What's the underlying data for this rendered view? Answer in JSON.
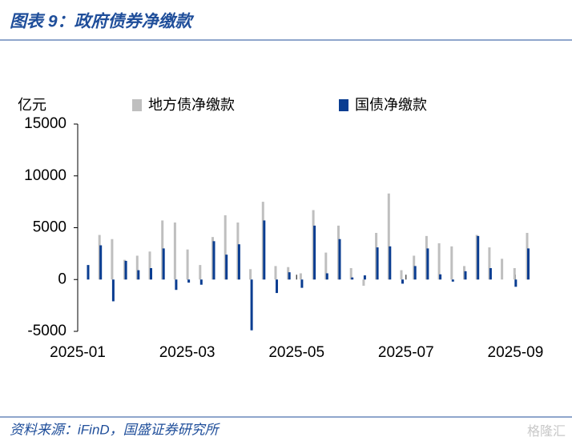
{
  "chart_data": {
    "type": "bar",
    "title": "图表 9：政府债券净缴款",
    "y_unit": "亿元",
    "source": "资料来源：iFinD，国盛证券研究所",
    "watermark": "格隆汇",
    "categories": [
      null,
      null,
      null,
      null,
      null,
      null,
      null,
      null,
      null,
      null,
      null,
      null,
      null,
      null,
      null,
      null,
      null,
      null,
      null,
      null,
      null,
      null,
      null,
      null,
      null,
      null,
      null,
      null,
      null,
      null,
      null,
      null,
      null,
      null,
      null,
      null
    ],
    "xticks": [
      "2025-01",
      "2025-03",
      "2025-05",
      "2025-07",
      "2025-09"
    ],
    "series": [
      {
        "name": "地方债净缴款",
        "color": "#bfbfbf",
        "values": [
          0,
          4300,
          3900,
          1900,
          2300,
          2700,
          5700,
          5500,
          2900,
          1400,
          4100,
          6200,
          5500,
          1000,
          7500,
          1300,
          1200,
          600,
          6700,
          2600,
          5200,
          1100,
          -600,
          4500,
          8300,
          900,
          2300,
          4200,
          3500,
          3200,
          1300,
          4300,
          3100,
          2000,
          1100,
          4500
        ]
      },
      {
        "name": "国债净缴款",
        "color": "#0a3d91",
        "values": [
          1400,
          3300,
          -2100,
          1800,
          900,
          1100,
          3000,
          -1000,
          -300,
          -500,
          3700,
          2400,
          3400,
          -4900,
          5700,
          -1300,
          700,
          -800,
          5200,
          600,
          3900,
          200,
          400,
          3100,
          3200,
          -400,
          1300,
          3000,
          500,
          -200,
          800,
          4200,
          1100,
          0,
          -700,
          3000
        ]
      }
    ],
    "ylim": [
      -5000,
      15000
    ],
    "yticks": [
      -5000,
      0,
      5000,
      10000,
      15000
    ]
  }
}
